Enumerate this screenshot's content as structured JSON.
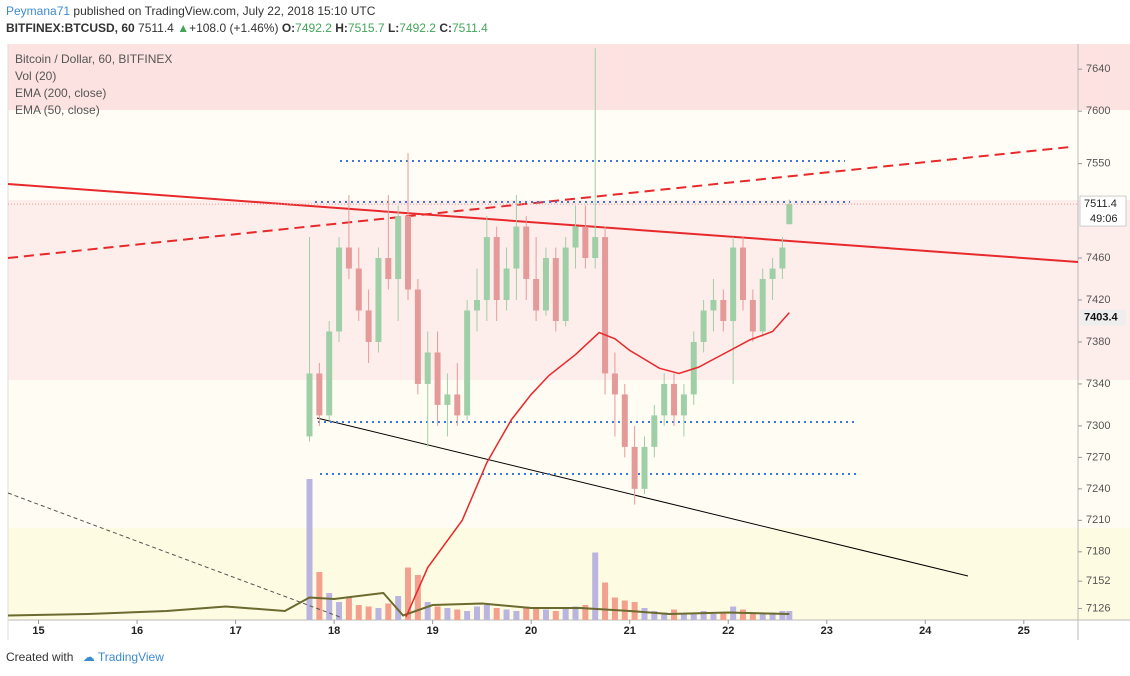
{
  "header": {
    "author": "Peymana71",
    "published": "published on TradingView.com, July 22, 2018 15:10 UTC",
    "symbol": "BITFINEX:BTCUSD, 60",
    "last": "7511.4",
    "change": "+108.0 (+1.46%)",
    "o_label": "O:",
    "o": "7492.2",
    "h_label": "H:",
    "h": "7515.7",
    "l_label": "L:",
    "l": "7492.2",
    "c_label": "C:",
    "c": "7511.4"
  },
  "chart_data": {
    "type": "candlestick",
    "legend": [
      "Bitcoin / Dollar, 60, BITFINEX",
      "Vol (20)",
      "EMA (200, close)",
      "EMA (50, close)"
    ],
    "x": [
      17.75,
      17.85,
      17.95,
      18.05,
      18.15,
      18.25,
      18.35,
      18.45,
      18.55,
      18.65,
      18.75,
      18.85,
      18.95,
      19.05,
      19.15,
      19.25,
      19.35,
      19.45,
      19.55,
      19.65,
      19.75,
      19.85,
      19.95,
      20.05,
      20.15,
      20.25,
      20.35,
      20.45,
      20.55,
      20.65,
      20.75,
      20.85,
      20.95,
      21.05,
      21.15,
      21.25,
      21.35,
      21.45,
      21.55,
      21.65,
      21.75,
      21.85,
      21.95,
      22.05,
      22.15,
      22.25,
      22.35,
      22.45,
      22.55,
      22.62
    ],
    "open": [
      7290,
      7350,
      7310,
      7390,
      7470,
      7450,
      7410,
      7380,
      7460,
      7440,
      7500,
      7430,
      7340,
      7370,
      7320,
      7330,
      7310,
      7410,
      7420,
      7480,
      7420,
      7450,
      7490,
      7440,
      7410,
      7460,
      7400,
      7470,
      7490,
      7460,
      7480,
      7350,
      7330,
      7280,
      7240,
      7280,
      7310,
      7340,
      7310,
      7330,
      7380,
      7410,
      7420,
      7400,
      7470,
      7420,
      7390,
      7440,
      7450,
      7492.2
    ],
    "high": [
      7480,
      7360,
      7400,
      7480,
      7520,
      7470,
      7430,
      7470,
      7520,
      7510,
      7560,
      7440,
      7390,
      7390,
      7350,
      7360,
      7420,
      7450,
      7500,
      7490,
      7470,
      7520,
      7500,
      7480,
      7470,
      7470,
      7480,
      7510,
      7510,
      7660,
      7490,
      7370,
      7340,
      7300,
      7290,
      7320,
      7350,
      7350,
      7340,
      7390,
      7420,
      7440,
      7430,
      7480,
      7480,
      7430,
      7450,
      7460,
      7480,
      7515.7
    ],
    "low": [
      7285,
      7300,
      7305,
      7380,
      7440,
      7400,
      7360,
      7370,
      7430,
      7400,
      7420,
      7330,
      7280,
      7300,
      7290,
      7300,
      7305,
      7390,
      7400,
      7400,
      7410,
      7420,
      7420,
      7400,
      7405,
      7390,
      7395,
      7450,
      7450,
      7450,
      7330,
      7290,
      7270,
      7225,
      7235,
      7270,
      7300,
      7300,
      7290,
      7320,
      7370,
      7390,
      7390,
      7340,
      7410,
      7380,
      7385,
      7420,
      7440,
      7492.2
    ],
    "close": [
      7350,
      7310,
      7390,
      7470,
      7450,
      7410,
      7380,
      7460,
      7440,
      7500,
      7430,
      7340,
      7370,
      7320,
      7330,
      7310,
      7410,
      7420,
      7480,
      7420,
      7450,
      7490,
      7440,
      7410,
      7460,
      7400,
      7470,
      7490,
      7460,
      7480,
      7350,
      7330,
      7280,
      7240,
      7280,
      7310,
      7340,
      7310,
      7330,
      7380,
      7410,
      7420,
      7400,
      7470,
      7420,
      7390,
      7440,
      7450,
      7470,
      7511.4
    ],
    "volume": [
      940,
      320,
      180,
      120,
      150,
      100,
      90,
      80,
      110,
      160,
      350,
      300,
      120,
      90,
      80,
      70,
      60,
      90,
      100,
      80,
      70,
      60,
      90,
      80,
      70,
      60,
      80,
      90,
      100,
      450,
      250,
      150,
      130,
      120,
      80,
      60,
      50,
      70,
      40,
      50,
      60,
      40,
      50,
      90,
      70,
      50,
      40,
      50,
      60,
      60
    ],
    "up_color": "#9fcfa6",
    "down_color": "#e59a9a",
    "volume_color": "#f4a08f",
    "xlim": [
      14.69,
      25.55
    ],
    "xticks": [
      15,
      16,
      17,
      18,
      19,
      20,
      21,
      22,
      23,
      24,
      25
    ],
    "ylim": [
      7115,
      7664
    ],
    "yticks": [
      7126,
      7152,
      7180,
      7210,
      7240,
      7270,
      7300,
      7340,
      7380,
      7420,
      7460,
      7550,
      7600,
      7640
    ],
    "volume_ylim": [
      0,
      1000
    ],
    "ema50": {
      "color": "#e8292b",
      "x": [
        18.73,
        18.95,
        19.3,
        19.55,
        19.8,
        20.0,
        20.18,
        20.45,
        20.69,
        20.85,
        21.0,
        21.3,
        21.5,
        21.7,
        21.92,
        22.1,
        22.22,
        22.45,
        22.62
      ],
      "values": [
        7118,
        7165,
        7210,
        7265,
        7306,
        7330,
        7348,
        7368,
        7389,
        7383,
        7372,
        7355,
        7350,
        7356,
        7367,
        7376,
        7382,
        7390,
        7408
      ]
    },
    "vol_ma": {
      "color": "#6b6a2f",
      "x": [
        14.69,
        15.5,
        16.3,
        16.9,
        17.5,
        17.75,
        18.0,
        18.5,
        18.7,
        19.0,
        19.5,
        20.0,
        20.5,
        21.0,
        21.4,
        22.0,
        22.62
      ],
      "values": [
        30,
        40,
        60,
        90,
        60,
        150,
        140,
        180,
        30,
        100,
        110,
        80,
        80,
        60,
        40,
        50,
        40
      ]
    },
    "last_price": 7511.4,
    "countdown": "49:06",
    "ema_price": 7403.4
  },
  "footer": {
    "created": "Created with",
    "brand": "TradingView"
  }
}
